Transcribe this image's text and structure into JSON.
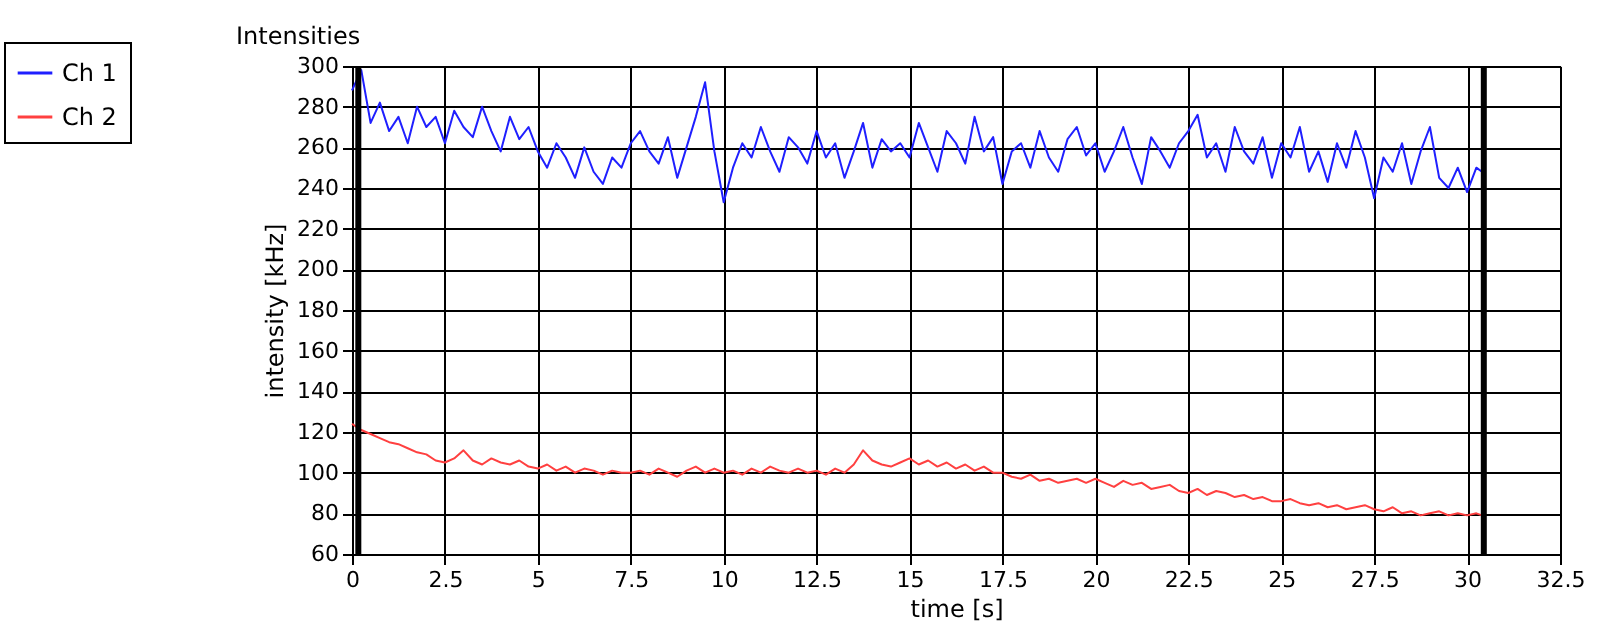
{
  "chart_data": {
    "type": "line",
    "title": "Intensities",
    "xlabel": "time [s]",
    "ylabel": "intensity [kHz]",
    "x": [
      0,
      0.25,
      0.5,
      0.75,
      1,
      1.25,
      1.5,
      1.75,
      2,
      2.25,
      2.5,
      2.75,
      3,
      3.25,
      3.5,
      3.75,
      4,
      4.25,
      4.5,
      4.75,
      5,
      5.25,
      5.5,
      5.75,
      6,
      6.25,
      6.5,
      6.75,
      7,
      7.25,
      7.5,
      7.75,
      8,
      8.25,
      8.5,
      8.75,
      9,
      9.25,
      9.5,
      9.75,
      10,
      10.25,
      10.5,
      10.75,
      11,
      11.25,
      11.5,
      11.75,
      12,
      12.25,
      12.5,
      12.75,
      13,
      13.25,
      13.5,
      13.75,
      14,
      14.25,
      14.5,
      14.75,
      15,
      15.25,
      15.5,
      15.75,
      16,
      16.25,
      16.5,
      16.75,
      17,
      17.25,
      17.5,
      17.75,
      18,
      18.25,
      18.5,
      18.75,
      19,
      19.25,
      19.5,
      19.75,
      20,
      20.25,
      20.5,
      20.75,
      21,
      21.25,
      21.5,
      21.75,
      22,
      22.25,
      22.5,
      22.75,
      23,
      23.25,
      23.5,
      23.75,
      24,
      24.25,
      24.5,
      24.75,
      25,
      25.25,
      25.5,
      25.75,
      26,
      26.25,
      26.5,
      26.75,
      27,
      27.25,
      27.5,
      27.75,
      28,
      28.25,
      28.5,
      28.75,
      29,
      29.25,
      29.5,
      29.75,
      30,
      30.25,
      30.4
    ],
    "series": [
      {
        "name": "Ch 1",
        "color": "#1f1fff",
        "values": [
          288,
          298,
          272,
          282,
          268,
          275,
          262,
          280,
          270,
          275,
          262,
          278,
          270,
          265,
          280,
          268,
          258,
          275,
          264,
          270,
          258,
          250,
          262,
          255,
          245,
          260,
          248,
          242,
          255,
          250,
          262,
          268,
          258,
          252,
          265,
          245,
          260,
          275,
          292,
          258,
          233,
          250,
          262,
          255,
          270,
          258,
          248,
          265,
          260,
          252,
          268,
          255,
          262,
          245,
          258,
          272,
          250,
          264,
          258,
          262,
          255,
          272,
          260,
          248,
          268,
          262,
          252,
          275,
          258,
          265,
          242,
          258,
          262,
          250,
          268,
          255,
          248,
          264,
          270,
          256,
          262,
          248,
          258,
          270,
          255,
          242,
          265,
          258,
          250,
          262,
          268,
          276,
          255,
          262,
          248,
          270,
          258,
          252,
          265,
          245,
          262,
          255,
          270,
          248,
          258,
          243,
          262,
          250,
          268,
          255,
          235,
          255,
          248,
          262,
          242,
          258,
          270,
          245,
          240,
          250,
          238,
          250,
          248
        ]
      },
      {
        "name": "Ch 2",
        "color": "#ff4040",
        "values": [
          124,
          121,
          119,
          117,
          115,
          114,
          112,
          110,
          109,
          106,
          105,
          107,
          111,
          106,
          104,
          107,
          105,
          104,
          106,
          103,
          102,
          104,
          101,
          103,
          100,
          102,
          101,
          99,
          101,
          100,
          100,
          101,
          99,
          102,
          100,
          98,
          101,
          103,
          100,
          102,
          100,
          101,
          99,
          102,
          100,
          103,
          101,
          100,
          102,
          100,
          101,
          99,
          102,
          100,
          104,
          111,
          106,
          104,
          103,
          105,
          107,
          104,
          106,
          103,
          105,
          102,
          104,
          101,
          103,
          100,
          100,
          98,
          97,
          99,
          96,
          97,
          95,
          96,
          97,
          95,
          97,
          95,
          93,
          96,
          94,
          95,
          92,
          93,
          94,
          91,
          90,
          92,
          89,
          91,
          90,
          88,
          89,
          87,
          88,
          86,
          86,
          87,
          85,
          84,
          85,
          83,
          84,
          82,
          83,
          84,
          82,
          81,
          83,
          80,
          81,
          79,
          80,
          81,
          79,
          80,
          79,
          80,
          79
        ]
      }
    ],
    "xlim": [
      0,
      32.5
    ],
    "xticks": [
      0,
      2.5,
      5,
      7.5,
      10,
      12.5,
      15,
      17.5,
      20,
      22.5,
      25,
      27.5,
      30,
      32.5
    ],
    "ylim": [
      60,
      300
    ],
    "yticks": [
      60,
      80,
      100,
      120,
      140,
      160,
      180,
      200,
      220,
      240,
      260,
      280,
      300
    ],
    "ref_lines": [
      {
        "axis": "x",
        "value": 0.17,
        "color": "#000000"
      },
      {
        "axis": "x",
        "value": 30.45,
        "color": "#000000"
      }
    ],
    "grid": true,
    "legend": "top left",
    "marker": "none",
    "line_style": "solid"
  }
}
